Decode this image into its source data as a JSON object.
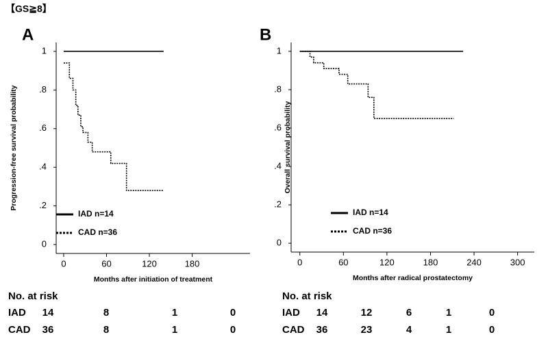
{
  "header": "【GS≧8】",
  "chart_data": [
    {
      "type": "step",
      "panel": "A",
      "xlabel": "Months after initiation of treatment",
      "ylabel": "Progression-free survival probability",
      "xlim": [
        -10.5,
        261
      ],
      "xticks": [
        0,
        60,
        120,
        180
      ],
      "ylim": [
        -0.046,
        1.046
      ],
      "yticks": [
        0,
        {
          "value": 0.2,
          "label": ".2"
        },
        {
          "value": 0.4,
          "label": ".4"
        },
        {
          "value": 0.6,
          "label": ".6"
        },
        {
          "value": 0.8,
          "label": ".8"
        },
        1
      ],
      "legend": "lower left",
      "series": [
        {
          "name": "IAD n=14",
          "color": "#000000",
          "style": "solid",
          "x": [
            0,
            140
          ],
          "values": [
            1,
            1
          ]
        },
        {
          "name": "CAD n=36",
          "color": "#000000",
          "style": "dotted",
          "x": [
            0,
            8,
            13,
            17,
            20,
            24,
            27,
            34,
            40,
            66,
            88,
            140
          ],
          "values": [
            0.94,
            0.86,
            0.8,
            0.72,
            0.67,
            0.61,
            0.58,
            0.53,
            0.48,
            0.42,
            0.28,
            0.28
          ]
        }
      ],
      "risk_table": {
        "title": "No. at risk",
        "rows": [
          {
            "name": "IAD",
            "values": [
              14,
              8,
              1,
              0
            ]
          },
          {
            "name": "CAD",
            "values": [
              36,
              8,
              1,
              0
            ]
          }
        ]
      }
    },
    {
      "type": "step",
      "panel": "B",
      "xlabel": "Months after radical prostatectomy",
      "ylabel": "Overall survival probability",
      "xlim": [
        -12,
        323
      ],
      "xticks": [
        0,
        60,
        120,
        180,
        240,
        300
      ],
      "ylim": [
        -0.046,
        1.046
      ],
      "yticks": [
        0,
        {
          "value": 0.2,
          "label": ".2"
        },
        {
          "value": 0.4,
          "label": ".4"
        },
        {
          "value": 0.6,
          "label": ".6"
        },
        {
          "value": 0.8,
          "label": ".8"
        },
        1
      ],
      "legend": "lower left",
      "series": [
        {
          "name": "IAD n=14",
          "color": "#000000",
          "style": "solid",
          "x": [
            0,
            225
          ],
          "values": [
            1,
            1
          ]
        },
        {
          "name": "CAD n=36",
          "color": "#000000",
          "style": "dotted",
          "x": [
            0,
            14,
            19,
            33,
            54,
            66,
            94,
            102,
            212
          ],
          "values": [
            1,
            0.97,
            0.94,
            0.91,
            0.88,
            0.83,
            0.76,
            0.65,
            0.65
          ]
        }
      ],
      "risk_table": {
        "title": "No. at risk",
        "rows": [
          {
            "name": "IAD",
            "values": [
              14,
              12,
              6,
              1,
              0
            ]
          },
          {
            "name": "CAD",
            "values": [
              36,
              23,
              4,
              1,
              0
            ]
          }
        ]
      }
    }
  ]
}
